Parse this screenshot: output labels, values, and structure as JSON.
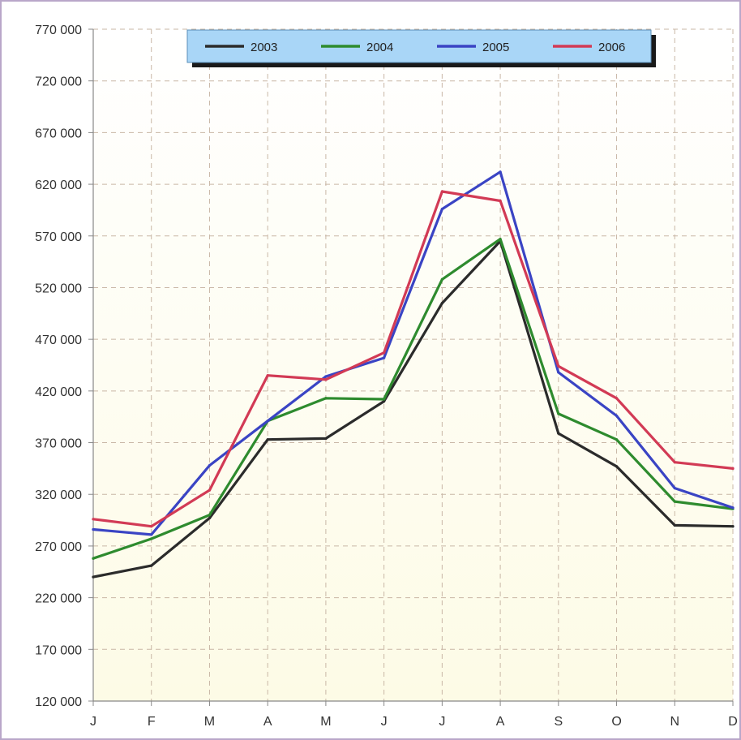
{
  "chart_data": {
    "type": "line",
    "title": "",
    "xlabel": "",
    "ylabel": "",
    "categories": [
      "J",
      "F",
      "M",
      "A",
      "M",
      "J",
      "J",
      "A",
      "S",
      "O",
      "N",
      "D"
    ],
    "ylim": [
      120000,
      770000
    ],
    "yticks": [
      120000,
      170000,
      220000,
      270000,
      320000,
      370000,
      420000,
      470000,
      520000,
      570000,
      620000,
      670000,
      720000,
      770000
    ],
    "ytick_labels": [
      "120 000",
      "170 000",
      "220 000",
      "270 000",
      "320 000",
      "370 000",
      "420 000",
      "470 000",
      "520 000",
      "570 000",
      "620 000",
      "670 000",
      "720 000",
      "770 000"
    ],
    "grid": true,
    "legend_position": "top-center",
    "series": [
      {
        "name": "2003",
        "color": "#2b2b2b",
        "values": [
          240000,
          251000,
          297000,
          373000,
          374000,
          410000,
          505000,
          565000,
          379000,
          347000,
          290000,
          289000
        ]
      },
      {
        "name": "2004",
        "color": "#2e8b2e",
        "values": [
          258000,
          277000,
          300000,
          391000,
          413000,
          412000,
          528000,
          567000,
          398000,
          373000,
          313000,
          306000
        ]
      },
      {
        "name": "2005",
        "color": "#3a44c4",
        "values": [
          286000,
          281000,
          348000,
          391000,
          434000,
          452000,
          596000,
          632000,
          438000,
          396000,
          326000,
          307000
        ]
      },
      {
        "name": "2006",
        "color": "#d23a55",
        "values": [
          296000,
          289000,
          324000,
          435000,
          431000,
          457000,
          613000,
          604000,
          444000,
          413000,
          351000,
          345000
        ]
      }
    ]
  },
  "colors": {
    "plot_bg_top": "#ffffff",
    "plot_bg_bottom": "#fdfbe6",
    "grid": "#c9b7a6",
    "axis": "#888888",
    "legend_bg": "#a9d6f7",
    "legend_border": "#5a8fb8",
    "legend_shadow": "#1a1a1a",
    "frame_border": "#b9a7c9"
  }
}
